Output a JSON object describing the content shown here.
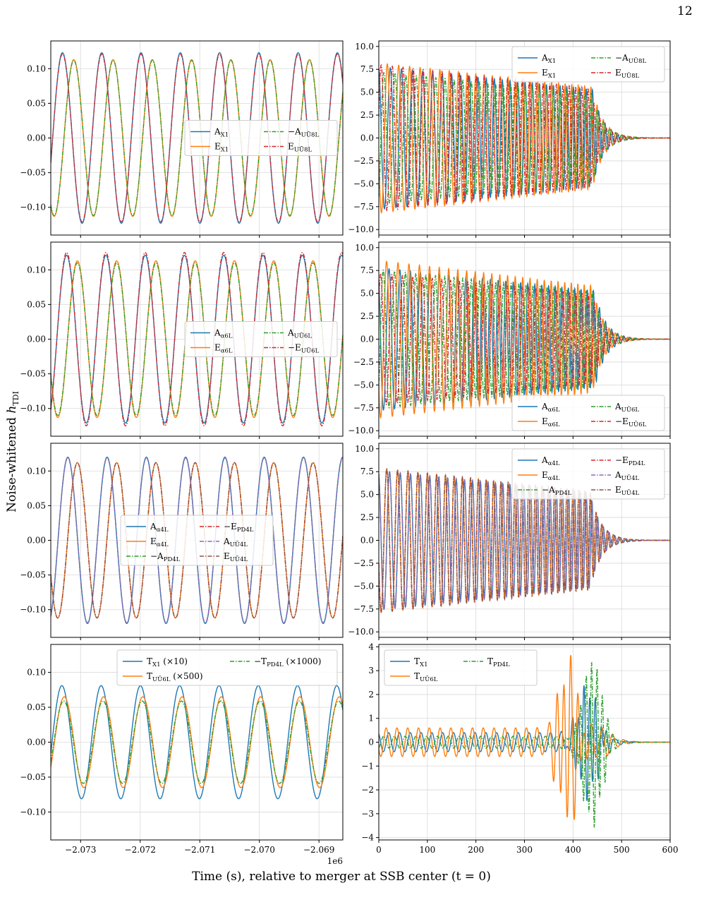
{
  "page_number": "12",
  "figure": {
    "ylabel": "Noise-whitened",
    "ylabel_math": "h",
    "ylabel_sub": "TDI",
    "xlabel": "Time (s), relative to merger at SSB center (t = 0)",
    "left_offset_text": "1e6"
  },
  "colors": {
    "blue": "#1f77b4",
    "orange": "#ff7f0e",
    "green": "#2ca02c",
    "red": "#d62728",
    "purple": "#9467bd",
    "brown": "#8c564b"
  },
  "chart_data": [
    {
      "id": "row1-left",
      "type": "line",
      "xlim": [
        -2073.5,
        -2068.6
      ],
      "x_scale": "1e3 s",
      "ylim": [
        -0.14,
        0.14
      ],
      "yticks": [
        0.1,
        0.05,
        0.0,
        -0.05,
        -0.1
      ],
      "ytick_labels": [
        "0.10",
        "0.05",
        "0.00",
        "−0.05",
        "−0.10"
      ],
      "xticks": [
        -2073,
        -2072,
        -2071,
        -2070,
        -2069
      ],
      "show_xtick_labels": false,
      "legend": {
        "cols": 2,
        "placement": "center-right"
      },
      "series": [
        {
          "name": "A",
          "sub": "X1",
          "sign": "",
          "color": "#1f77b4",
          "style": "solid",
          "amp": 0.123,
          "period": 0.659,
          "phase": -0.09
        },
        {
          "name": "E",
          "sub": "X1",
          "sign": "",
          "color": "#ff7f0e",
          "style": "solid",
          "amp": 0.113,
          "period": 0.659,
          "phase": 0.1
        },
        {
          "name": "A",
          "sub": "UŪ8L",
          "sign": "−",
          "color": "#2ca02c",
          "style": "dashdot",
          "amp": 0.112,
          "period": 0.659,
          "phase": 0.1
        },
        {
          "name": "E",
          "sub": "UŪ8L",
          "sign": "",
          "color": "#d62728",
          "style": "dashdot",
          "amp": 0.121,
          "period": 0.659,
          "phase": -0.09
        }
      ]
    },
    {
      "id": "row1-right",
      "type": "line",
      "xlim": [
        0,
        600
      ],
      "ylim": [
        -10.6,
        10.6
      ],
      "yticks": [
        10.0,
        7.5,
        5.0,
        2.5,
        0.0,
        -2.5,
        -5.0,
        -7.5,
        -10.0
      ],
      "ytick_labels": [
        "10.0",
        "7.5",
        "5.0",
        "2.5",
        "0.0",
        "−2.5",
        "−5.0",
        "−7.5",
        "−10.0"
      ],
      "xticks": [
        0,
        100,
        200,
        300,
        400,
        500,
        600
      ],
      "show_xtick_labels": false,
      "legend": {
        "cols": 2,
        "placement": "top-right"
      },
      "series": [
        {
          "name": "A",
          "sub": "X1",
          "sign": "",
          "color": "#1f77b4",
          "style": "solid",
          "amp": 7.8,
          "f0": 0.04,
          "f1": 0.078,
          "tpk": 440,
          "phase": 0.2
        },
        {
          "name": "E",
          "sub": "X1",
          "sign": "",
          "color": "#ff7f0e",
          "style": "solid",
          "amp": 8.2,
          "f0": 0.04,
          "f1": 0.078,
          "tpk": 440,
          "phase": 1.8
        },
        {
          "name": "A",
          "sub": "UŪ8L",
          "sign": "−",
          "color": "#2ca02c",
          "style": "dashdot",
          "amp": 7.2,
          "f0": 0.041,
          "f1": 0.08,
          "tpk": 440,
          "phase": 3.6
        },
        {
          "name": "E",
          "sub": "UŪ8L",
          "sign": "",
          "color": "#d62728",
          "style": "dashdot",
          "amp": 8.0,
          "f0": 0.042,
          "f1": 0.08,
          "tpk": 435,
          "phase": 5.0
        }
      ]
    },
    {
      "id": "row2-left",
      "type": "line",
      "xlim": [
        -2073.5,
        -2068.6
      ],
      "ylim": [
        -0.14,
        0.14
      ],
      "yticks": [
        0.1,
        0.05,
        0.0,
        -0.05,
        -0.1
      ],
      "ytick_labels": [
        "0.10",
        "0.05",
        "0.00",
        "−0.05",
        "−0.10"
      ],
      "xticks": [
        -2073,
        -2072,
        -2071,
        -2070,
        -2069
      ],
      "show_xtick_labels": false,
      "legend": {
        "cols": 2,
        "placement": "center-right"
      },
      "series": [
        {
          "name": "A",
          "sub": "α6L",
          "sign": "",
          "color": "#1f77b4",
          "style": "solid",
          "amp": 0.121,
          "period": 0.659,
          "phase": -0.02
        },
        {
          "name": "E",
          "sub": "α6L",
          "sign": "",
          "color": "#ff7f0e",
          "style": "solid",
          "amp": 0.113,
          "period": 0.659,
          "phase": 0.16
        },
        {
          "name": "A",
          "sub": "UŪ6L",
          "sign": "",
          "color": "#2ca02c",
          "style": "dashdot",
          "amp": 0.11,
          "period": 0.659,
          "phase": 0.16
        },
        {
          "name": "E",
          "sub": "UŪ6L",
          "sign": "−",
          "color": "#d62728",
          "style": "dashdot",
          "amp": 0.125,
          "period": 0.659,
          "phase": -0.02
        }
      ]
    },
    {
      "id": "row2-right",
      "type": "line",
      "xlim": [
        0,
        600
      ],
      "ylim": [
        -10.6,
        10.6
      ],
      "yticks": [
        10.0,
        7.5,
        5.0,
        2.5,
        0.0,
        -2.5,
        -5.0,
        -7.5,
        -10.0
      ],
      "ytick_labels": [
        "10.0",
        "7.5",
        "5.0",
        "2.5",
        "0.0",
        "−2.5",
        "−5.0",
        "−7.5",
        "−10.0"
      ],
      "xticks": [
        0,
        100,
        200,
        300,
        400,
        500,
        600
      ],
      "show_xtick_labels": false,
      "legend": {
        "cols": 2,
        "placement": "bottom-right"
      },
      "series": [
        {
          "name": "A",
          "sub": "α6L",
          "sign": "",
          "color": "#1f77b4",
          "style": "solid",
          "amp": 7.8,
          "f0": 0.042,
          "f1": 0.08,
          "tpk": 445,
          "phase": 0.6
        },
        {
          "name": "E",
          "sub": "α6L",
          "sign": "",
          "color": "#ff7f0e",
          "style": "solid",
          "amp": 8.6,
          "f0": 0.04,
          "f1": 0.078,
          "tpk": 440,
          "phase": 2.2
        },
        {
          "name": "A",
          "sub": "UŪ6L",
          "sign": "",
          "color": "#2ca02c",
          "style": "dashdot",
          "amp": 7.6,
          "f0": 0.041,
          "f1": 0.079,
          "tpk": 440,
          "phase": 3.9
        },
        {
          "name": "E",
          "sub": "UŪ6L",
          "sign": "−",
          "color": "#d62728",
          "style": "dashdot",
          "amp": 7.2,
          "f0": 0.042,
          "f1": 0.08,
          "tpk": 440,
          "phase": 5.3
        }
      ]
    },
    {
      "id": "row3-left",
      "type": "line",
      "xlim": [
        -2073.5,
        -2068.6
      ],
      "ylim": [
        -0.14,
        0.14
      ],
      "yticks": [
        0.1,
        0.05,
        0.0,
        -0.05,
        -0.1
      ],
      "ytick_labels": [
        "0.10",
        "0.05",
        "0.00",
        "−0.05",
        "−0.10"
      ],
      "xticks": [
        -2073,
        -2072,
        -2071,
        -2070,
        -2069
      ],
      "show_xtick_labels": false,
      "legend": {
        "cols": 2,
        "placement": "center"
      },
      "series": [
        {
          "name": "A",
          "sub": "α4L",
          "sign": "",
          "color": "#1f77b4",
          "style": "solid",
          "amp": 0.12,
          "period": 0.659,
          "phase": 0.0
        },
        {
          "name": "E",
          "sub": "α4L",
          "sign": "",
          "color": "#ff7f0e",
          "style": "solid",
          "amp": 0.112,
          "period": 0.659,
          "phase": 0.16
        },
        {
          "name": "A",
          "sub": "PD4L",
          "sign": "−",
          "color": "#2ca02c",
          "style": "dashdot",
          "amp": 0.119,
          "period": 0.659,
          "phase": 0.0
        },
        {
          "name": "E",
          "sub": "PD4L",
          "sign": "−",
          "color": "#d62728",
          "style": "dashdot",
          "amp": 0.112,
          "period": 0.659,
          "phase": 0.16
        },
        {
          "name": "A",
          "sub": "UŪ4L",
          "sign": "",
          "color": "#9467bd",
          "style": "dashdot",
          "amp": 0.119,
          "period": 0.659,
          "phase": 0.0
        },
        {
          "name": "E",
          "sub": "UŪ4L",
          "sign": "",
          "color": "#8c564b",
          "style": "dashdot",
          "amp": 0.112,
          "period": 0.659,
          "phase": 0.16
        }
      ]
    },
    {
      "id": "row3-right",
      "type": "line",
      "xlim": [
        0,
        600
      ],
      "ylim": [
        -10.6,
        10.6
      ],
      "yticks": [
        10.0,
        7.5,
        5.0,
        2.5,
        0.0,
        -2.5,
        -5.0,
        -7.5,
        -10.0
      ],
      "ytick_labels": [
        "10.0",
        "7.5",
        "5.0",
        "2.5",
        "0.0",
        "−2.5",
        "−5.0",
        "−7.5",
        "−10.0"
      ],
      "xticks": [
        0,
        100,
        200,
        300,
        400,
        500,
        600
      ],
      "show_xtick_labels": false,
      "legend": {
        "cols": 2,
        "placement": "top-right"
      },
      "series": [
        {
          "name": "A",
          "sub": "α4L",
          "sign": "",
          "color": "#1f77b4",
          "style": "solid",
          "amp": 7.6,
          "f0": 0.042,
          "f1": 0.085,
          "tpk": 435,
          "phase": 0.3
        },
        {
          "name": "E",
          "sub": "α4L",
          "sign": "",
          "color": "#ff7f0e",
          "style": "solid",
          "amp": 7.9,
          "f0": 0.042,
          "f1": 0.085,
          "tpk": 435,
          "phase": 1.9
        },
        {
          "name": "A",
          "sub": "PD4L",
          "sign": "−",
          "color": "#2ca02c",
          "style": "dashdot",
          "amp": 7.6,
          "f0": 0.042,
          "f1": 0.085,
          "tpk": 435,
          "phase": 0.3
        },
        {
          "name": "E",
          "sub": "PD4L",
          "sign": "−",
          "color": "#d62728",
          "style": "dashdot",
          "amp": 7.9,
          "f0": 0.042,
          "f1": 0.085,
          "tpk": 435,
          "phase": 1.9
        },
        {
          "name": "A",
          "sub": "UŪ4L",
          "sign": "",
          "color": "#9467bd",
          "style": "dashdot",
          "amp": 7.6,
          "f0": 0.042,
          "f1": 0.085,
          "tpk": 435,
          "phase": 0.3
        },
        {
          "name": "E",
          "sub": "UŪ4L",
          "sign": "",
          "color": "#8c564b",
          "style": "dashdot",
          "amp": 7.9,
          "f0": 0.042,
          "f1": 0.085,
          "tpk": 435,
          "phase": 1.9
        }
      ]
    },
    {
      "id": "row4-left",
      "type": "line",
      "xlim": [
        -2073.5,
        -2068.6
      ],
      "ylim": [
        -0.14,
        0.14
      ],
      "yticks": [
        0.1,
        0.05,
        0.0,
        -0.05,
        -0.1
      ],
      "ytick_labels": [
        "0.10",
        "0.05",
        "0.00",
        "−0.05",
        "−0.10"
      ],
      "xticks": [
        -2073,
        -2072,
        -2071,
        -2070,
        -2069
      ],
      "xtick_labels": [
        "−2.073",
        "−2.072",
        "−2.071",
        "−2.070",
        "−2.069"
      ],
      "show_xtick_labels": true,
      "legend": {
        "cols": 2,
        "placement": "top-right"
      },
      "series": [
        {
          "name": "T",
          "sub": "X1",
          "sign": "",
          "suffix": " (×10)",
          "color": "#1f77b4",
          "style": "solid",
          "amp": 0.081,
          "period": 0.659,
          "phase": -0.1
        },
        {
          "name": "T",
          "sub": "UŪ6L",
          "sign": "",
          "suffix": " (×500)",
          "color": "#ff7f0e",
          "style": "solid",
          "amp": 0.065,
          "period": 0.659,
          "phase": -0.06
        },
        {
          "name": "T",
          "sub": "PD4L",
          "sign": "−",
          "suffix": " (×1000)",
          "color": "#2ca02c",
          "style": "dashdot",
          "amp": 0.059,
          "period": 0.659,
          "phase": -0.07
        }
      ]
    },
    {
      "id": "row4-right",
      "type": "line",
      "xlim": [
        0,
        600
      ],
      "ylim": [
        -4.1,
        4.1
      ],
      "yticks": [
        4,
        3,
        2,
        1,
        0,
        -1,
        -2,
        -3,
        -4
      ],
      "ytick_labels": [
        "4",
        "3",
        "2",
        "1",
        "0",
        "−1",
        "−2",
        "−3",
        "−4"
      ],
      "xticks": [
        0,
        100,
        200,
        300,
        400,
        500,
        600
      ],
      "xtick_labels": [
        "0",
        "100",
        "200",
        "300",
        "400",
        "500",
        "600"
      ],
      "show_xtick_labels": true,
      "legend": {
        "cols": 2,
        "placement": "top-left"
      },
      "series": [
        {
          "name": "T",
          "sub": "X1",
          "sign": "",
          "color": "#1f77b4",
          "style": "solid",
          "amp": 0.4,
          "burst": 2.2,
          "f0": 0.05,
          "f1": 0.085,
          "tpk": 430,
          "phase": 0.5
        },
        {
          "name": "T",
          "sub": "UŪ6L",
          "sign": "",
          "color": "#ff7f0e",
          "style": "solid",
          "amp": 0.6,
          "burst": 3.3,
          "f0": 0.035,
          "f1": 0.07,
          "tpk": 390,
          "phase": 2.0
        },
        {
          "name": "T",
          "sub": "PD4L",
          "sign": "",
          "color": "#2ca02c",
          "style": "dashdot",
          "amp": 0.25,
          "burst": 3.4,
          "f0": 0.05,
          "f1": 0.09,
          "tpk": 440,
          "phase": 3.5
        }
      ]
    }
  ]
}
